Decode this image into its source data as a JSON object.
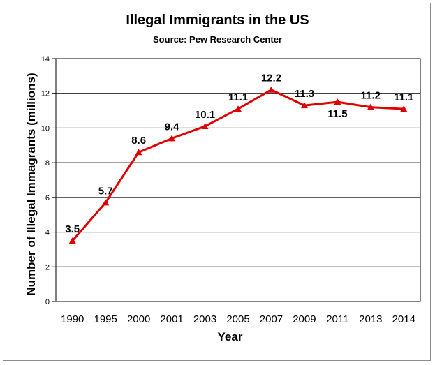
{
  "chart_data": {
    "type": "line",
    "title": "Illegal Immigrants in the US",
    "subtitle": "Source: Pew Research Center",
    "xlabel": "Year",
    "ylabel": "Number of Illegal Immagrants (millions)",
    "categories": [
      "1990",
      "1995",
      "2000",
      "2001",
      "2003",
      "2005",
      "2007",
      "2009",
      "2011",
      "2013",
      "2014"
    ],
    "series": [
      {
        "values": [
          3.5,
          5.7,
          8.6,
          9.4,
          10.1,
          11.1,
          12.2,
          11.3,
          11.5,
          11.2,
          11.1
        ],
        "labels": [
          "3.5",
          "5.7",
          "8.6",
          "9.4",
          "10.1",
          "11.1",
          "12.2",
          "11.3",
          "11.5",
          "11.2",
          "11.1"
        ],
        "color": "#e00000",
        "marker": "triangle"
      }
    ],
    "ylim": [
      0,
      14
    ],
    "yticks": [
      0,
      2,
      4,
      6,
      8,
      10,
      12,
      14
    ],
    "grid": true,
    "legend": "none"
  }
}
